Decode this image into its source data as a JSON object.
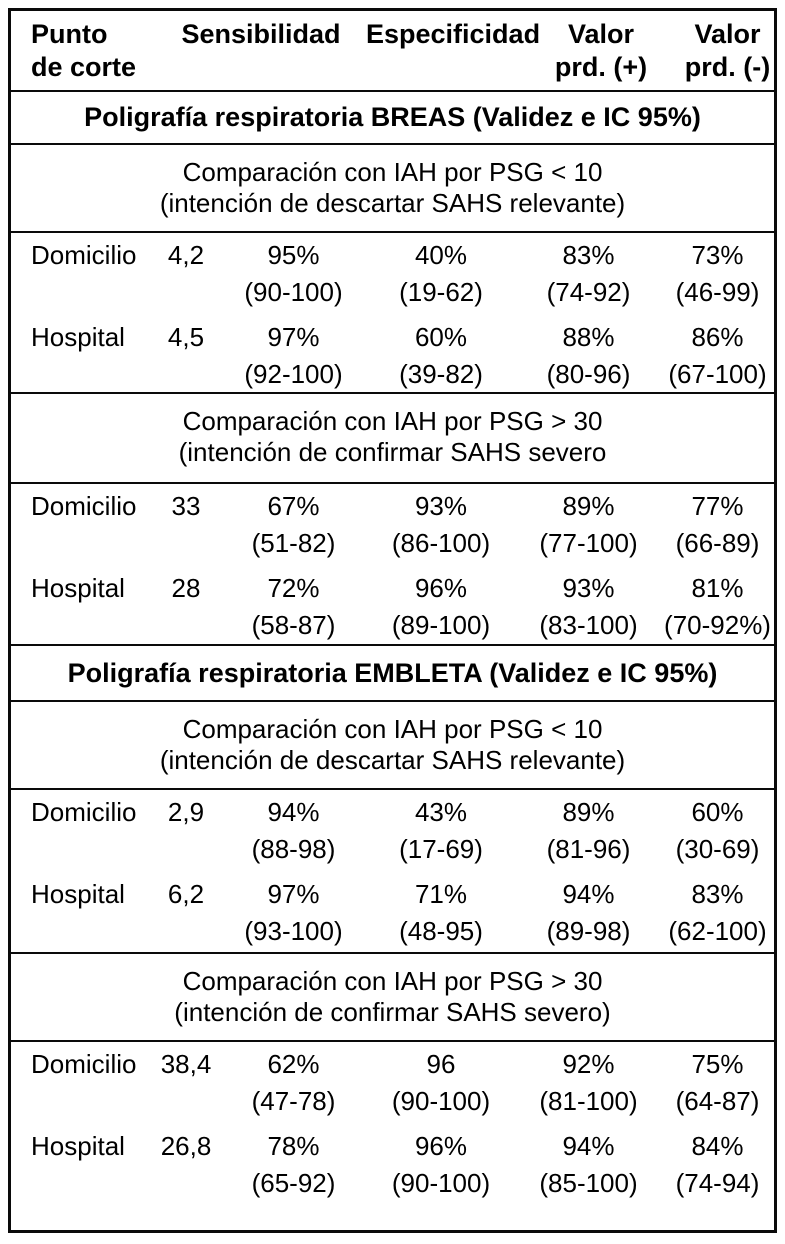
{
  "table": {
    "header": {
      "col1_line1": "Punto",
      "col1_line2": "de corte",
      "sensibilidad": "Sensibilidad",
      "especificidad": "Especificidad",
      "valor_pos_line1": "Valor",
      "valor_pos_line2": "prd. (+)",
      "valor_neg_line1": "Valor",
      "valor_neg_line2": "prd. (-)"
    },
    "sections": [
      {
        "title": "Poligrafía respiratoria BREAS (Validez e IC 95%)",
        "subsections": [
          {
            "caption_line1": "Comparación con IAH por PSG < 10",
            "caption_line2": "(intención de descartar SAHS relevante)",
            "rows": [
              {
                "label": "Domicilio",
                "cutoff": "4,2",
                "sens": "95%",
                "sens_ci": "(90-100)",
                "spec": "40%",
                "spec_ci": "(19-62)",
                "ppv": "83%",
                "ppv_ci": "(74-92)",
                "npv": "73%",
                "npv_ci": "(46-99)"
              },
              {
                "label": "Hospital",
                "cutoff": "4,5",
                "sens": "97%",
                "sens_ci": "(92-100)",
                "spec": "60%",
                "spec_ci": "(39-82)",
                "ppv": "88%",
                "ppv_ci": "(80-96)",
                "npv": "86%",
                "npv_ci": "(67-100)"
              }
            ]
          },
          {
            "caption_line1": "Comparación con IAH por PSG > 30",
            "caption_line2": "(intención de confirmar SAHS severo",
            "rows": [
              {
                "label": "Domicilio",
                "cutoff": "33",
                "sens": "67%",
                "sens_ci": "(51-82)",
                "spec": "93%",
                "spec_ci": "(86-100)",
                "ppv": "89%",
                "ppv_ci": "(77-100)",
                "npv": "77%",
                "npv_ci": "(66-89)"
              },
              {
                "label": "Hospital",
                "cutoff": "28",
                "sens": "72%",
                "sens_ci": "(58-87)",
                "spec": "96%",
                "spec_ci": "(89-100)",
                "ppv": "93%",
                "ppv_ci": "(83-100)",
                "npv": "81%",
                "npv_ci": "(70-92%)"
              }
            ]
          }
        ]
      },
      {
        "title": "Poligrafía respiratoria EMBLETA (Validez e IC 95%)",
        "subsections": [
          {
            "caption_line1": "Comparación con IAH por PSG < 10",
            "caption_line2": "(intención de descartar SAHS relevante)",
            "rows": [
              {
                "label": "Domicilio",
                "cutoff": "2,9",
                "sens": "94%",
                "sens_ci": "(88-98)",
                "spec": "43%",
                "spec_ci": "(17-69)",
                "ppv": "89%",
                "ppv_ci": "(81-96)",
                "npv": "60%",
                "npv_ci": "(30-69)"
              },
              {
                "label": "Hospital",
                "cutoff": "6,2",
                "sens": "97%",
                "sens_ci": "(93-100)",
                "spec": "71%",
                "spec_ci": "(48-95)",
                "ppv": "94%",
                "ppv_ci": "(89-98)",
                "npv": "83%",
                "npv_ci": "(62-100)"
              }
            ]
          },
          {
            "caption_line1": "Comparación con IAH por PSG > 30",
            "caption_line2": "(intención de confirmar SAHS severo)",
            "rows": [
              {
                "label": "Domicilio",
                "cutoff": "38,4",
                "sens": "62%",
                "sens_ci": "(47-78)",
                "spec": "96",
                "spec_ci": "(90-100)",
                "ppv": "92%",
                "ppv_ci": "(81-100)",
                "npv": "75%",
                "npv_ci": "(64-87)"
              },
              {
                "label": "Hospital",
                "cutoff": "26,8",
                "sens": "78%",
                "sens_ci": "(65-92)",
                "spec": "96%",
                "spec_ci": "(90-100)",
                "ppv": "94%",
                "ppv_ci": "(85-100)",
                "npv": "84%",
                "npv_ci": "(74-94)"
              }
            ]
          }
        ]
      }
    ]
  }
}
